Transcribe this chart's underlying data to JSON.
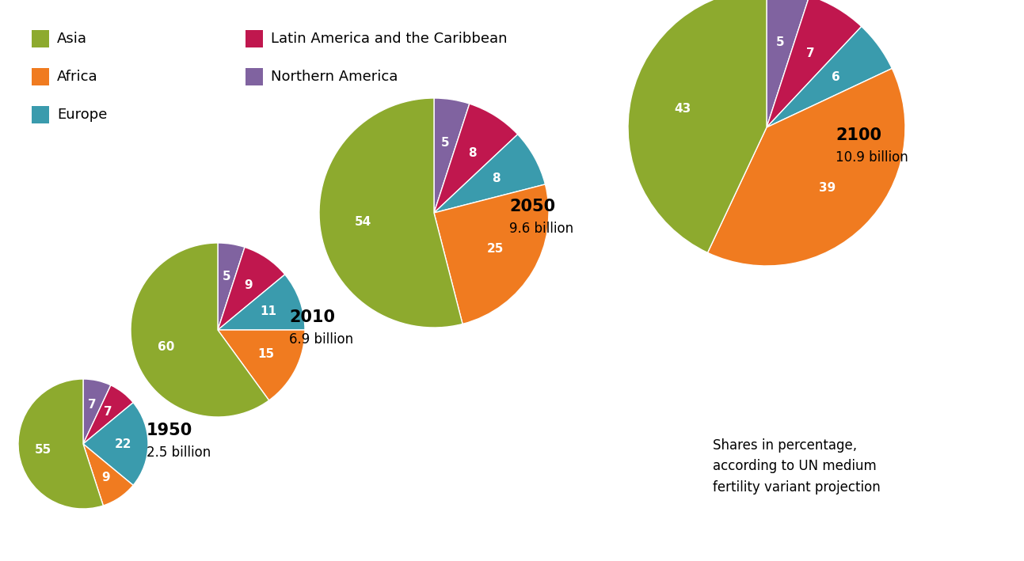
{
  "years": [
    "1950",
    "2010",
    "2050",
    "2100"
  ],
  "populations": [
    "2.5 billion",
    "6.9 billion",
    "9.6 billion",
    "10.9 billion"
  ],
  "slices_order": [
    "Asia",
    "Africa",
    "Europe",
    "Latin America and the Caribbean",
    "Northern America"
  ],
  "slices": {
    "Asia": [
      55,
      60,
      54,
      43
    ],
    "Africa": [
      9,
      15,
      25,
      39
    ],
    "Europe": [
      22,
      11,
      8,
      6
    ],
    "Latin America and the Caribbean": [
      7,
      9,
      8,
      7
    ],
    "Northern America": [
      7,
      5,
      5,
      5
    ]
  },
  "colors": {
    "Asia": "#8DAA2E",
    "Africa": "#F07B20",
    "Europe": "#3A9BAD",
    "Latin America and the Caribbean": "#C0174E",
    "Northern America": "#8063A0"
  },
  "note_text": "Shares in percentage,\naccording to UN medium\nfertility variant projection"
}
